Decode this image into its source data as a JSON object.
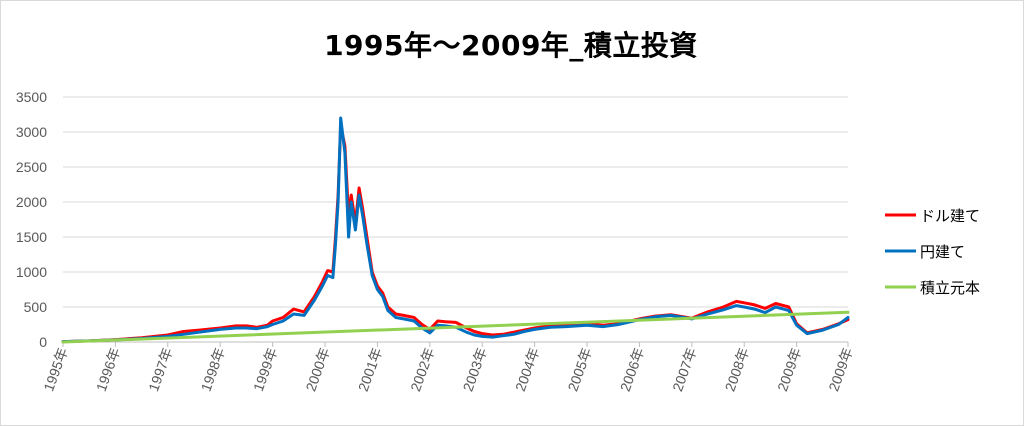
{
  "chart_data": {
    "type": "line",
    "title": "1995年～2009年_積立投資",
    "xlabel": "",
    "ylabel": "",
    "ylim": [
      0,
      3500
    ],
    "yticks": [
      0,
      500,
      1000,
      1500,
      2000,
      2500,
      3000,
      3500
    ],
    "xlim": [
      1995,
      2009.98
    ],
    "x_tick_labels": [
      "1995年",
      "1996年",
      "1997年",
      "1998年",
      "1999年",
      "2000年",
      "2001年",
      "2002年",
      "2003年",
      "2004年",
      "2005年",
      "2006年",
      "2007年",
      "2008年",
      "2009年",
      "2009年"
    ],
    "x_tick_values": [
      1995,
      1996,
      1997,
      1998,
      1999,
      2000,
      2001,
      2002,
      2003,
      2004,
      2005,
      2006,
      2007,
      2008,
      2009,
      2009.98
    ],
    "grid": true,
    "legend_position": "right",
    "series": [
      {
        "name": "ドル建て",
        "color": "#ff0000",
        "x": [
          1995.0,
          1995.5,
          1996.0,
          1996.5,
          1997.0,
          1997.3,
          1997.6,
          1998.0,
          1998.3,
          1998.5,
          1998.7,
          1998.9,
          1999.0,
          1999.2,
          1999.4,
          1999.6,
          1999.8,
          1999.95,
          2000.05,
          2000.15,
          2000.2,
          2000.25,
          2000.3,
          2000.38,
          2000.45,
          2000.5,
          2000.58,
          2000.65,
          2000.72,
          2000.8,
          2000.9,
          2001.0,
          2001.1,
          2001.2,
          2001.35,
          2001.5,
          2001.7,
          2001.85,
          2002.0,
          2002.15,
          2002.3,
          2002.5,
          2002.7,
          2002.85,
          2003.0,
          2003.2,
          2003.4,
          2003.6,
          2003.8,
          2004.0,
          2004.3,
          2004.6,
          2005.0,
          2005.3,
          2005.6,
          2006.0,
          2006.3,
          2006.6,
          2007.0,
          2007.3,
          2007.6,
          2007.85,
          2008.0,
          2008.2,
          2008.4,
          2008.6,
          2008.75,
          2008.85,
          2009.0,
          2009.2,
          2009.5,
          2009.8,
          2009.98
        ],
        "values": [
          5,
          15,
          35,
          60,
          100,
          150,
          170,
          200,
          230,
          230,
          210,
          240,
          300,
          350,
          470,
          430,
          650,
          860,
          1020,
          1000,
          1500,
          2100,
          3100,
          2800,
          1800,
          2100,
          1700,
          2200,
          1900,
          1500,
          1000,
          800,
          700,
          500,
          400,
          380,
          350,
          250,
          180,
          300,
          290,
          280,
          200,
          150,
          120,
          100,
          110,
          140,
          170,
          200,
          230,
          240,
          270,
          240,
          260,
          330,
          370,
          390,
          340,
          430,
          500,
          580,
          560,
          530,
          480,
          550,
          520,
          500,
          260,
          130,
          180,
          260,
          320
        ]
      },
      {
        "name": "円建て",
        "color": "#0070c0",
        "x": [
          1995.0,
          1995.5,
          1996.0,
          1996.5,
          1997.0,
          1997.3,
          1997.6,
          1998.0,
          1998.3,
          1998.5,
          1998.7,
          1998.9,
          1999.0,
          1999.2,
          1999.4,
          1999.6,
          1999.8,
          1999.95,
          2000.05,
          2000.15,
          2000.2,
          2000.25,
          2000.3,
          2000.38,
          2000.45,
          2000.5,
          2000.58,
          2000.65,
          2000.72,
          2000.8,
          2000.9,
          2001.0,
          2001.1,
          2001.2,
          2001.35,
          2001.5,
          2001.7,
          2001.85,
          2002.0,
          2002.15,
          2002.3,
          2002.5,
          2002.7,
          2002.85,
          2003.0,
          2003.2,
          2003.4,
          2003.6,
          2003.8,
          2004.0,
          2004.3,
          2004.6,
          2005.0,
          2005.3,
          2005.6,
          2006.0,
          2006.3,
          2006.6,
          2007.0,
          2007.3,
          2007.6,
          2007.85,
          2008.0,
          2008.2,
          2008.4,
          2008.6,
          2008.75,
          2008.85,
          2009.0,
          2009.2,
          2009.5,
          2009.8,
          2009.98
        ],
        "values": [
          5,
          15,
          30,
          50,
          80,
          110,
          140,
          180,
          200,
          200,
          190,
          220,
          250,
          300,
          400,
          380,
          600,
          800,
          950,
          920,
          1400,
          2000,
          3200,
          2700,
          1500,
          2000,
          1600,
          2100,
          1800,
          1400,
          950,
          750,
          650,
          450,
          350,
          330,
          300,
          200,
          130,
          240,
          230,
          210,
          140,
          100,
          80,
          70,
          90,
          110,
          150,
          180,
          210,
          220,
          240,
          220,
          250,
          320,
          360,
          380,
          330,
          400,
          460,
          520,
          500,
          470,
          420,
          500,
          470,
          450,
          240,
          120,
          170,
          250,
          350
        ]
      },
      {
        "name": "積立元本",
        "color": "#92d050",
        "x": [
          1995.0,
          2009.98
        ],
        "values": [
          0,
          425
        ]
      }
    ]
  }
}
